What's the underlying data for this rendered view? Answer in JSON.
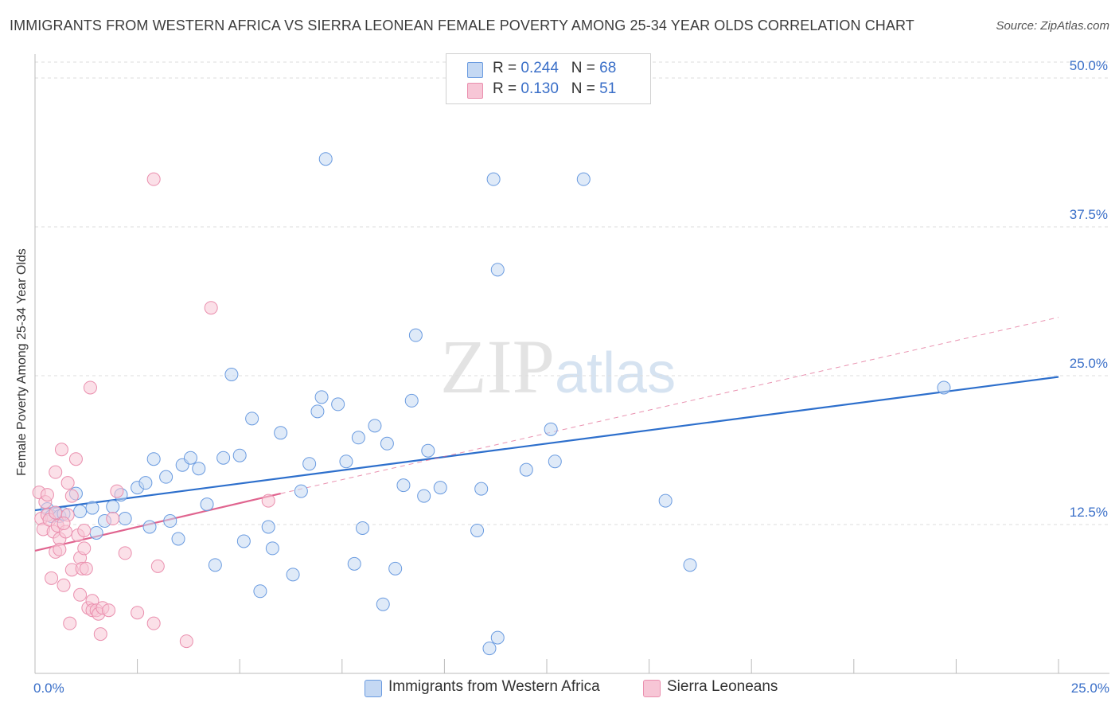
{
  "chart_data": {
    "type": "scatter",
    "title": "IMMIGRANTS FROM WESTERN AFRICA VS SIERRA LEONEAN FEMALE POVERTY AMONG 25-34 YEAR OLDS CORRELATION CHART",
    "source": "Source: ZipAtlas.com",
    "xlabel": "",
    "ylabel": "Female Poverty Among 25-34 Year Olds",
    "xlim": [
      0,
      25
    ],
    "ylim": [
      0,
      50
    ],
    "x_tick_labels": [
      {
        "value": 0,
        "label": "0.0%"
      },
      {
        "value": 25,
        "label": "25.0%"
      }
    ],
    "y_tick_labels": [
      {
        "value": 12.5,
        "label": "12.5%"
      },
      {
        "value": 25,
        "label": "25.0%"
      },
      {
        "value": 37.5,
        "label": "37.5%"
      },
      {
        "value": 50,
        "label": "50.0%"
      }
    ],
    "watermark": {
      "part1": "ZIP",
      "part2": "atlas"
    },
    "legend": [
      {
        "r_label": "R =",
        "r_value": "0.244",
        "n_label": "N =",
        "n_value": "68"
      },
      {
        "r_label": "R =",
        "r_value": "0.130",
        "n_label": "N =",
        "n_value": "51"
      }
    ],
    "series": [
      {
        "name": "Immigrants from Western Africa",
        "color": "#6a9be0",
        "fill": "#c4d8f3",
        "trend": {
          "x": [
            0,
            25
          ],
          "y": [
            13.7,
            24.9
          ],
          "color": "#2d6fcc",
          "dashed_extension": false
        },
        "points": [
          [
            0.3,
            13.8
          ],
          [
            0.4,
            13.2
          ],
          [
            0.5,
            13.5
          ],
          [
            0.6,
            13.2
          ],
          [
            0.7,
            13.4
          ],
          [
            1.0,
            15.1
          ],
          [
            1.1,
            13.6
          ],
          [
            1.4,
            13.9
          ],
          [
            1.5,
            11.8
          ],
          [
            1.7,
            12.8
          ],
          [
            1.9,
            14.0
          ],
          [
            2.1,
            15.0
          ],
          [
            2.2,
            13.0
          ],
          [
            2.5,
            15.6
          ],
          [
            2.7,
            16.0
          ],
          [
            2.8,
            12.3
          ],
          [
            2.9,
            18.0
          ],
          [
            3.2,
            16.5
          ],
          [
            3.3,
            12.8
          ],
          [
            3.5,
            11.3
          ],
          [
            3.6,
            17.5
          ],
          [
            3.8,
            18.1
          ],
          [
            4.0,
            17.2
          ],
          [
            4.2,
            14.2
          ],
          [
            4.4,
            9.1
          ],
          [
            4.6,
            18.1
          ],
          [
            4.8,
            25.1
          ],
          [
            5.0,
            18.3
          ],
          [
            5.1,
            11.1
          ],
          [
            5.3,
            21.4
          ],
          [
            5.5,
            6.9
          ],
          [
            5.7,
            12.3
          ],
          [
            5.8,
            10.5
          ],
          [
            6.0,
            20.2
          ],
          [
            6.3,
            8.3
          ],
          [
            6.5,
            15.3
          ],
          [
            6.7,
            17.6
          ],
          [
            6.9,
            22.0
          ],
          [
            7.0,
            23.2
          ],
          [
            7.1,
            43.2
          ],
          [
            7.4,
            22.6
          ],
          [
            7.6,
            17.8
          ],
          [
            7.8,
            9.2
          ],
          [
            7.9,
            19.8
          ],
          [
            8.0,
            12.2
          ],
          [
            8.3,
            20.8
          ],
          [
            8.5,
            5.8
          ],
          [
            8.6,
            19.3
          ],
          [
            8.8,
            8.8
          ],
          [
            9.0,
            15.8
          ],
          [
            9.2,
            22.9
          ],
          [
            9.3,
            28.4
          ],
          [
            9.5,
            14.9
          ],
          [
            9.6,
            18.7
          ],
          [
            9.9,
            15.6
          ],
          [
            10.8,
            12.0
          ],
          [
            10.9,
            15.5
          ],
          [
            11.1,
            2.1
          ],
          [
            11.2,
            41.5
          ],
          [
            11.3,
            33.9
          ],
          [
            11.3,
            3.0
          ],
          [
            12.0,
            17.1
          ],
          [
            12.6,
            20.5
          ],
          [
            12.7,
            17.8
          ],
          [
            13.4,
            41.5
          ],
          [
            15.4,
            14.5
          ],
          [
            16.0,
            9.1
          ],
          [
            22.2,
            24.0
          ]
        ]
      },
      {
        "name": "Sierra Leoneans",
        "color": "#ea8fae",
        "fill": "#f7c6d6",
        "trend": {
          "x": [
            0,
            6.0
          ],
          "y": [
            10.3,
            15.1
          ],
          "color": "#e0648f",
          "dashed_extension": true,
          "extension_to": [
            25,
            29.9
          ]
        },
        "points": [
          [
            0.1,
            15.2
          ],
          [
            0.15,
            13.0
          ],
          [
            0.2,
            12.1
          ],
          [
            0.25,
            14.4
          ],
          [
            0.3,
            13.3
          ],
          [
            0.35,
            12.9
          ],
          [
            0.4,
            8.0
          ],
          [
            0.45,
            11.9
          ],
          [
            0.5,
            10.2
          ],
          [
            0.5,
            16.9
          ],
          [
            0.55,
            12.4
          ],
          [
            0.6,
            11.3
          ],
          [
            0.6,
            10.4
          ],
          [
            0.65,
            18.8
          ],
          [
            0.7,
            7.4
          ],
          [
            0.75,
            11.9
          ],
          [
            0.8,
            13.3
          ],
          [
            0.8,
            16.0
          ],
          [
            0.85,
            4.2
          ],
          [
            0.9,
            8.7
          ],
          [
            0.9,
            14.9
          ],
          [
            1.0,
            18.0
          ],
          [
            1.05,
            11.6
          ],
          [
            1.1,
            9.7
          ],
          [
            1.1,
            6.6
          ],
          [
            1.15,
            8.8
          ],
          [
            1.2,
            10.5
          ],
          [
            1.25,
            8.8
          ],
          [
            1.3,
            5.5
          ],
          [
            1.35,
            24.0
          ],
          [
            1.4,
            6.1
          ],
          [
            1.4,
            5.3
          ],
          [
            1.5,
            5.3
          ],
          [
            1.55,
            5.0
          ],
          [
            1.6,
            3.3
          ],
          [
            1.65,
            5.5
          ],
          [
            1.8,
            5.3
          ],
          [
            1.9,
            13.0
          ],
          [
            2.0,
            15.3
          ],
          [
            2.2,
            10.1
          ],
          [
            2.5,
            5.1
          ],
          [
            2.9,
            4.2
          ],
          [
            2.9,
            41.5
          ],
          [
            3.0,
            9.0
          ],
          [
            3.7,
            2.7
          ],
          [
            4.3,
            30.7
          ],
          [
            5.7,
            14.5
          ],
          [
            0.3,
            15.0
          ],
          [
            0.5,
            13.5
          ],
          [
            0.7,
            12.6
          ],
          [
            1.2,
            12.0
          ]
        ]
      }
    ]
  }
}
